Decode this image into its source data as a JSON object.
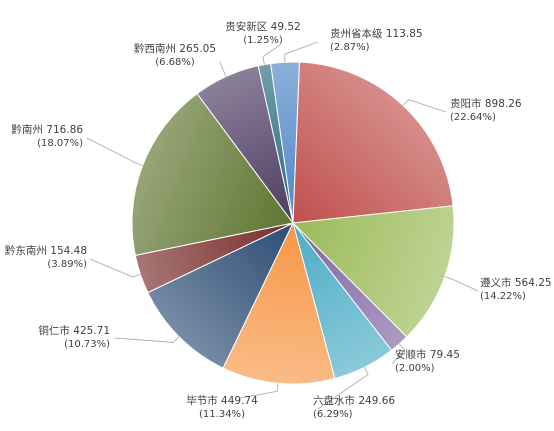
{
  "chart_data": {
    "type": "pie",
    "title": "",
    "start_angle_deg": -8,
    "direction": "clockwise",
    "slices": [
      {
        "name": "贵州省本级",
        "value": 113.85,
        "percent": "(2.87%)",
        "color": "#4f86c6"
      },
      {
        "name": "贵阳市",
        "value": 898.26,
        "percent": "(22.64%)",
        "color": "#c0504d"
      },
      {
        "name": "遵义市",
        "value": 564.25,
        "percent": "(14.22%)",
        "color": "#9bbb59"
      },
      {
        "name": "安顺市",
        "value": 79.45,
        "percent": "(2.00%)",
        "color": "#8064a2"
      },
      {
        "name": "六盘水市",
        "value": 249.66,
        "percent": "(6.29%)",
        "color": "#4bacc6"
      },
      {
        "name": "毕节市",
        "value": 449.74,
        "percent": "(11.34%)",
        "color": "#f79646"
      },
      {
        "name": "铜仁市",
        "value": 425.71,
        "percent": "(10.73%)",
        "color": "#2c4d75"
      },
      {
        "name": "黔东南州",
        "value": 154.48,
        "percent": "(3.89%)",
        "color": "#772c2a"
      },
      {
        "name": "黔南州",
        "value": 716.86,
        "percent": "(18.07%)",
        "color": "#5f7530"
      },
      {
        "name": "黔西南州",
        "value": 265.05,
        "percent": "(6.68%)",
        "color": "#4d3b62"
      },
      {
        "name": "贵安新区",
        "value": 49.52,
        "percent": "(1.25%)",
        "color": "#276a7c"
      }
    ]
  }
}
